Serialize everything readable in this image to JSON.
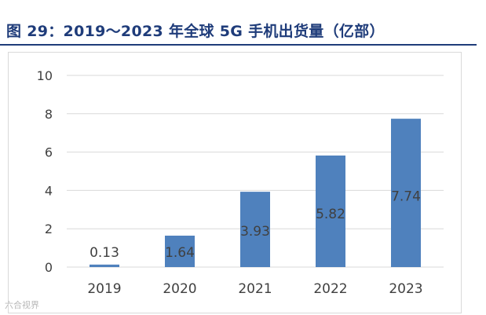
{
  "figure": {
    "title": "图 29：2019～2023 年全球 5G 手机出货量（亿部）",
    "watermark": "六合视界"
  },
  "colors": {
    "title": "#1f3c7a",
    "bar": "#4f81bd",
    "grid": "#d9d9d9",
    "text": "#404040"
  },
  "chart_data": {
    "type": "bar",
    "categories": [
      "2019",
      "2020",
      "2021",
      "2022",
      "2023"
    ],
    "values": [
      0.13,
      1.64,
      3.93,
      5.82,
      7.74
    ],
    "data_labels": [
      "0.13",
      "1.64",
      "3.93",
      "5.82",
      "7.74"
    ],
    "title": "",
    "xlabel": "",
    "ylabel": "",
    "ylim": [
      0,
      10
    ],
    "yticks": [
      0,
      2,
      4,
      6,
      8,
      10
    ],
    "ytick_labels": [
      "0",
      "2",
      "4",
      "6",
      "8",
      "10"
    ],
    "grid": true,
    "legend": "none"
  }
}
